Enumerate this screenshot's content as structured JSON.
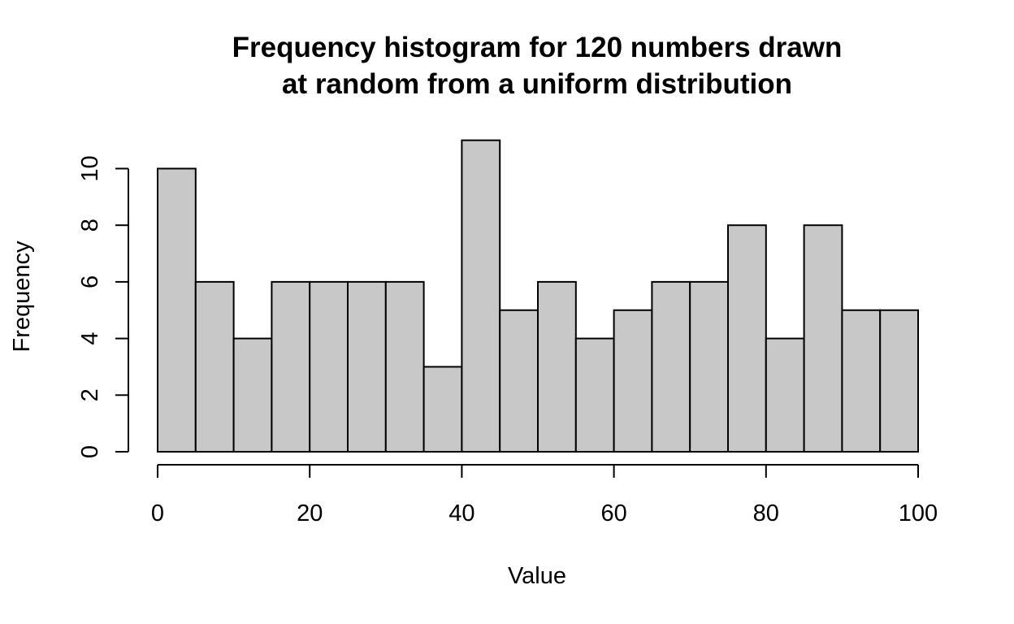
{
  "chart_data": {
    "type": "bar",
    "title_line1": "Frequency histogram for 120 numbers drawn",
    "title_line2": "at random from a uniform distribution",
    "xlabel": "Value",
    "ylabel": "Frequency",
    "bin_width": 5,
    "bin_starts": [
      0,
      5,
      10,
      15,
      20,
      25,
      30,
      35,
      40,
      45,
      50,
      55,
      60,
      65,
      70,
      75,
      80,
      85,
      90,
      95
    ],
    "values": [
      10,
      6,
      4,
      6,
      6,
      6,
      6,
      3,
      11,
      5,
      6,
      4,
      5,
      6,
      6,
      8,
      4,
      8,
      5,
      5
    ],
    "xlim": [
      0,
      100
    ],
    "ylim": [
      0,
      11
    ],
    "x_ticks": [
      0,
      20,
      40,
      60,
      80,
      100
    ],
    "x_tick_labels": [
      "0",
      "20",
      "40",
      "60",
      "80",
      "100"
    ],
    "y_ticks": [
      0,
      2,
      4,
      6,
      8,
      10
    ],
    "y_tick_labels": [
      "0",
      "2",
      "4",
      "6",
      "8",
      "10"
    ],
    "bar_color": "#c8c8c8",
    "grid": false,
    "legend": "none"
  }
}
